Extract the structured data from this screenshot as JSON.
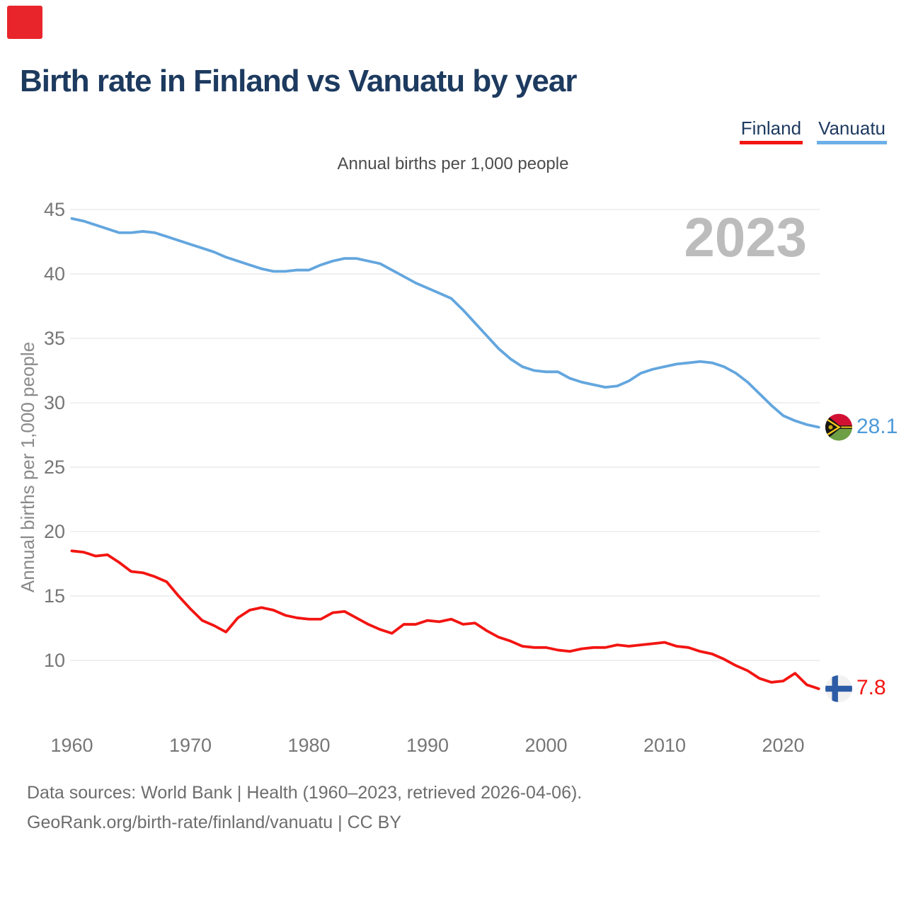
{
  "page": {
    "title": "Birth rate in Finland vs Vanuatu by year",
    "subtitle": "Annual births per 1,000 people",
    "watermark": "2023",
    "footer_line1": "Data sources: World Bank | Health (1960–2023, retrieved 2026-04-06).",
    "footer_line2": "GeoRank.org/birth-rate/finland/vanuatu | CC BY",
    "logo_color": "#e8252a"
  },
  "legend": [
    {
      "label": "Finland",
      "color": "#f21511"
    },
    {
      "label": "Vanuatu",
      "color": "#6cb0e8"
    }
  ],
  "chart_data": {
    "type": "line",
    "title": "Birth rate in Finland vs Vanuatu by year",
    "subtitle": "Annual births per 1,000 people",
    "xlabel": "",
    "ylabel": "Annual births per 1,000 people",
    "x_start": 1960,
    "x_end": 2023,
    "xticks": [
      1960,
      1970,
      1980,
      1990,
      2000,
      2010,
      2020
    ],
    "yticks": [
      10,
      15,
      20,
      25,
      30,
      35,
      40,
      45
    ],
    "ylim": [
      7,
      46
    ],
    "grid": true,
    "legend_position": "top-right",
    "watermark": "2023",
    "colors": {
      "grid": "#ececec",
      "axis_text": "#767676",
      "axis_title": "#8a8a8a",
      "watermark": "#bcbcbc"
    },
    "series": [
      {
        "name": "Vanuatu",
        "color": "#63a6de",
        "end_label": "28.1",
        "end_value": 28.1,
        "flag": "vanuatu",
        "values": [
          44.3,
          44.1,
          43.8,
          43.5,
          43.2,
          43.2,
          43.3,
          43.2,
          42.9,
          42.6,
          42.3,
          42.0,
          41.7,
          41.3,
          41.0,
          40.7,
          40.4,
          40.2,
          40.2,
          40.3,
          40.3,
          40.7,
          41.0,
          41.2,
          41.2,
          41.0,
          40.8,
          40.3,
          39.8,
          39.3,
          38.9,
          38.5,
          38.1,
          37.2,
          36.2,
          35.2,
          34.2,
          33.4,
          32.8,
          32.5,
          32.4,
          32.4,
          31.9,
          31.6,
          31.4,
          31.2,
          31.3,
          31.7,
          32.3,
          32.6,
          32.8,
          33.0,
          33.1,
          33.2,
          33.1,
          32.8,
          32.3,
          31.6,
          30.7,
          29.8,
          29.0,
          28.6,
          28.3,
          28.1
        ]
      },
      {
        "name": "Finland",
        "color": "#f21511",
        "end_label": "7.8",
        "end_value": 7.8,
        "flag": "finland",
        "values": [
          18.5,
          18.4,
          18.1,
          18.2,
          17.6,
          16.9,
          16.8,
          16.5,
          16.1,
          15.0,
          14.0,
          13.1,
          12.7,
          12.2,
          13.3,
          13.9,
          14.1,
          13.9,
          13.5,
          13.3,
          13.2,
          13.2,
          13.7,
          13.8,
          13.3,
          12.8,
          12.4,
          12.1,
          12.8,
          12.8,
          13.1,
          13.0,
          13.2,
          12.8,
          12.9,
          12.3,
          11.8,
          11.5,
          11.1,
          11.0,
          11.0,
          10.8,
          10.7,
          10.9,
          11.0,
          11.0,
          11.2,
          11.1,
          11.2,
          11.3,
          11.4,
          11.1,
          11.0,
          10.7,
          10.5,
          10.1,
          9.6,
          9.2,
          8.6,
          8.3,
          8.4,
          9.0,
          8.1,
          7.8
        ]
      }
    ]
  }
}
